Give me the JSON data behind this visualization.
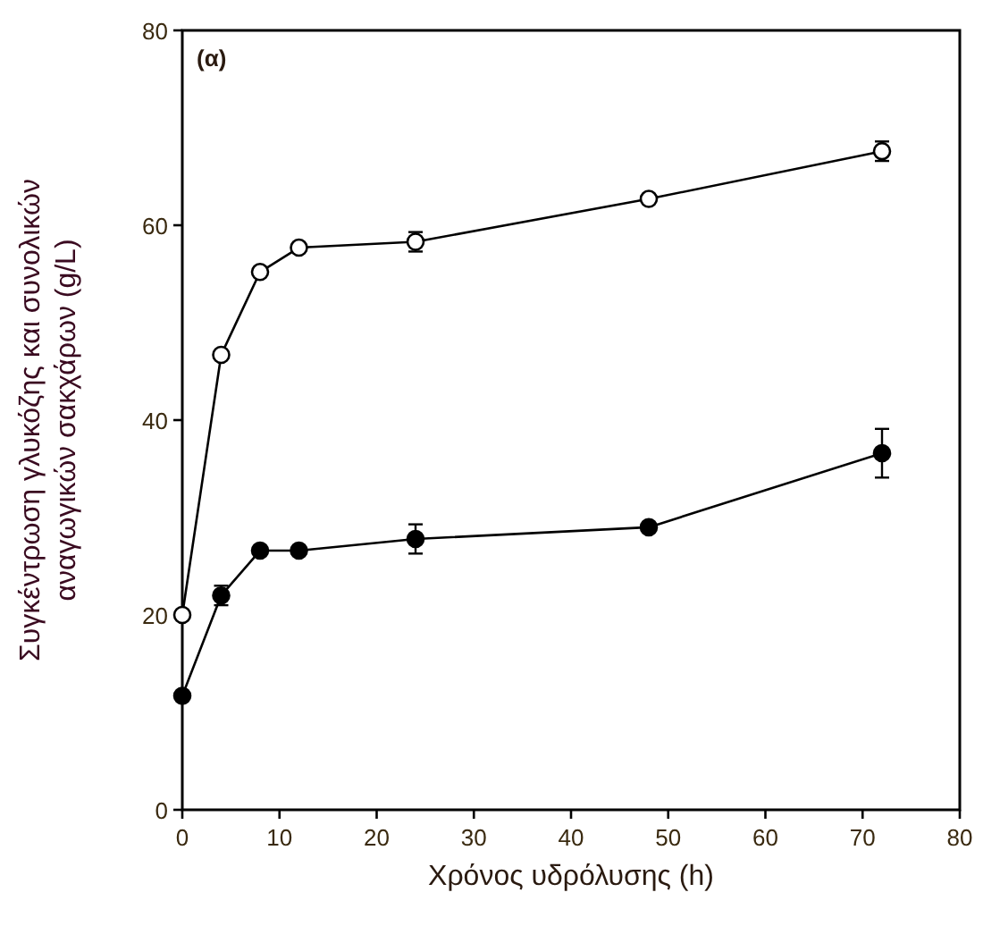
{
  "chart_data": {
    "type": "line",
    "xlabel": "Χρόνος υδρόλυσης (h)",
    "ylabel": "Συγκέντρωση γλυκόζης και συνολικών\nαναγωγικών σακχάρων (g/L)",
    "annotations": [
      "(α)"
    ],
    "x": [
      0,
      4,
      8,
      12,
      24,
      48,
      72
    ],
    "series": [
      {
        "color": "#000000",
        "values": [
          20,
          46.7,
          55.2,
          57.7,
          58.3,
          62.7,
          67.6
        ],
        "errors": [
          null,
          null,
          null,
          null,
          1,
          null,
          1
        ]
      },
      {
        "color": "#000000",
        "values": [
          11.7,
          22,
          26.6,
          26.6,
          27.8,
          29,
          36.6
        ],
        "errors": [
          null,
          1,
          null,
          null,
          1.5,
          null,
          2.5
        ]
      }
    ],
    "xlim": [
      0,
      80
    ],
    "xticks": [
      0,
      10,
      20,
      30,
      40,
      50,
      60,
      70,
      80
    ],
    "ylim": [
      0,
      80
    ],
    "yticks": [
      0,
      20,
      40,
      60,
      80
    ],
    "marker": "circle",
    "line_style": "solid",
    "grid": false
  }
}
